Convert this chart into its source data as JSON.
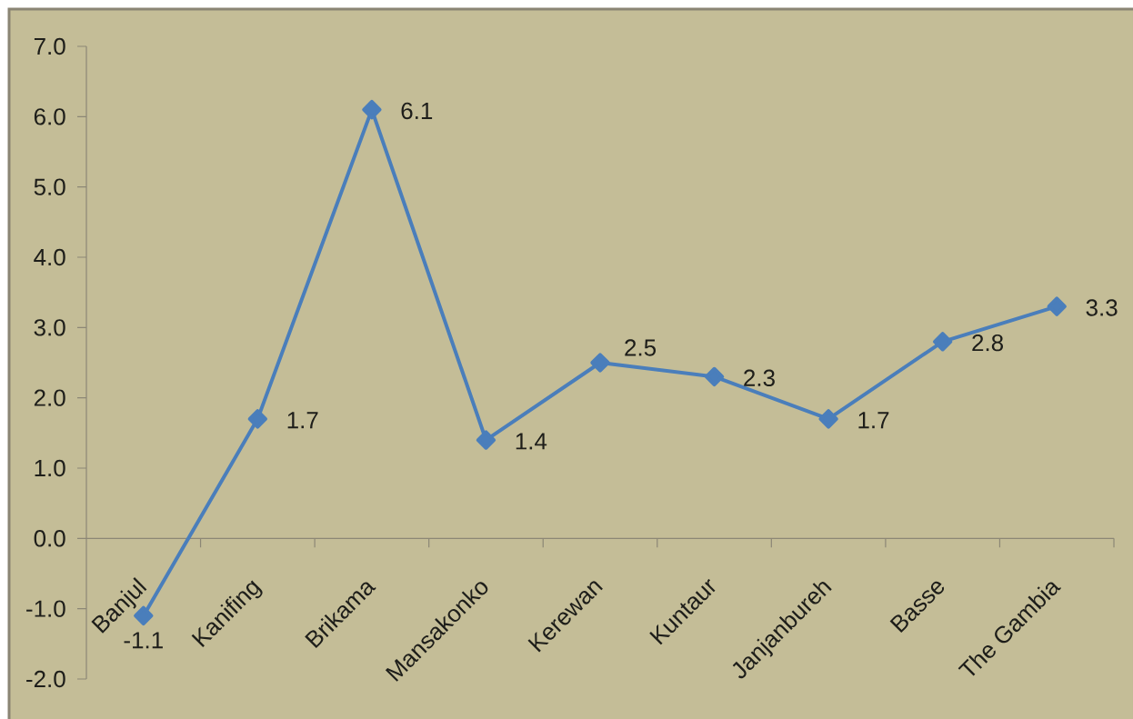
{
  "chart_data": {
    "type": "line",
    "categories": [
      "Banjul",
      "Kanifing",
      "Brikama",
      "Mansakonko",
      "Kerewan",
      "Kuntaur",
      "Janjanbureh",
      "Basse",
      "The Gambia"
    ],
    "values": [
      -1.1,
      1.7,
      6.1,
      1.4,
      2.5,
      2.3,
      1.7,
      2.8,
      3.3
    ],
    "color": "#4a7ebb",
    "marker": "diamond",
    "data_labels": true,
    "ylim": [
      -2,
      7
    ],
    "yticks": [
      {
        "value": -2,
        "label": "-2.0"
      },
      {
        "value": -1,
        "label": "-1.0"
      },
      {
        "value": 0,
        "label": "0.0"
      },
      {
        "value": 1,
        "label": "1.0"
      },
      {
        "value": 2,
        "label": "2.0"
      },
      {
        "value": 3,
        "label": "3.0"
      },
      {
        "value": 4,
        "label": "4.0"
      },
      {
        "value": 5,
        "label": "5.0"
      },
      {
        "value": 6,
        "label": "6.0"
      },
      {
        "value": 7,
        "label": "7.0"
      }
    ]
  }
}
